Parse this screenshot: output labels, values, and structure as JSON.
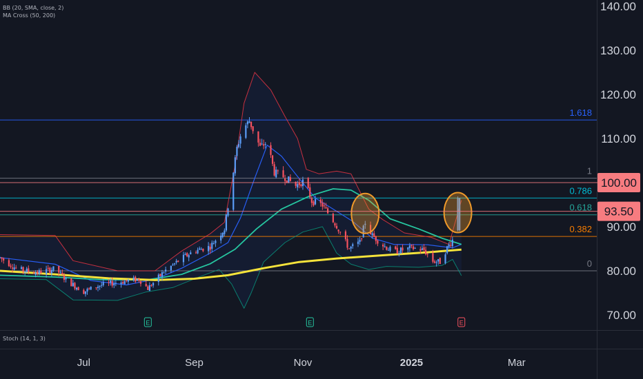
{
  "legend": {
    "bb": "BB (20, SMA, close, 2)",
    "ma": "MA Cross (50, 200)",
    "stoch": "Stoch (14, 1, 3)"
  },
  "colors": {
    "background": "#131722",
    "grid": "#1e222d",
    "candle_up": "#5b9cf6",
    "candle_down": "#f7525f",
    "bb_basis": "#2962ff",
    "bb_upper": "#f23645",
    "bb_lower": "#089981",
    "ma_fast": "#26c6a0",
    "ma_slow": "#f5e33b",
    "fib_1618": "#2962ff",
    "fib_0786": "#00bcd4",
    "fib_0618": "#26a69a",
    "fib_0382": "#f57c00",
    "fib_0": "#787b86",
    "fib_1": "#787b86",
    "price_badge": "#f77c80",
    "highlight_circle": "#f09a2a"
  },
  "chart_data": {
    "type": "candlestick",
    "title": "",
    "y_axis": {
      "ticks": [
        140,
        130,
        120,
        110,
        90,
        80,
        70
      ],
      "tick_labels": [
        "140.00",
        "130.00",
        "120.00",
        "110.00",
        "90.00",
        "80.00",
        "70.00"
      ],
      "range": [
        66,
        142
      ],
      "position": "right"
    },
    "x_axis": {
      "tick_labels": [
        "Jul",
        "Sep",
        "Nov",
        "2025",
        "Mar"
      ],
      "tick_dates": [
        "2024-07-01",
        "2024-09-01",
        "2024-11-01",
        "2025-01-01",
        "2025-03-01"
      ],
      "range": [
        "2024-05-15",
        "2025-04-15"
      ]
    },
    "price_badges": [
      {
        "value": 100.0,
        "label": "100.00"
      },
      {
        "value": 93.5,
        "label": "93.50"
      }
    ],
    "fib_levels": [
      {
        "level": "1.618",
        "price": 114.2,
        "color_key": "fib_1618"
      },
      {
        "level": "1",
        "price": 101.0,
        "color_key": "fib_1"
      },
      {
        "level": "0.786",
        "price": 96.5,
        "color_key": "fib_0786"
      },
      {
        "level": "0.618",
        "price": 92.7,
        "color_key": "fib_0618"
      },
      {
        "level": "0.382",
        "price": 87.8,
        "color_key": "fib_0382"
      },
      {
        "level": "0",
        "price": 80.0,
        "color_key": "fib_0"
      }
    ],
    "earnings_markers": [
      {
        "date": "2024-08-06",
        "label": "E",
        "kind": "past"
      },
      {
        "date": "2024-11-05",
        "label": "E",
        "kind": "past"
      },
      {
        "date": "2025-01-29",
        "label": "E",
        "kind": "upcoming"
      }
    ],
    "highlight_circles": [
      {
        "date": "2024-12-06",
        "price": 93.0
      },
      {
        "date": "2025-01-27",
        "price": 93.2
      }
    ],
    "candle_anchors": [
      [
        "2024-05-15",
        83.0
      ],
      [
        "2024-05-25",
        80.3
      ],
      [
        "2024-06-05",
        79.6
      ],
      [
        "2024-06-15",
        80.5
      ],
      [
        "2024-06-22",
        77.6
      ],
      [
        "2024-07-01",
        75.3
      ],
      [
        "2024-07-10",
        76.7
      ],
      [
        "2024-07-20",
        77.4
      ],
      [
        "2024-08-01",
        78.1
      ],
      [
        "2024-08-06",
        76.0
      ],
      [
        "2024-08-15",
        79.8
      ],
      [
        "2024-08-25",
        82.8
      ],
      [
        "2024-09-01",
        84.5
      ],
      [
        "2024-09-10",
        85.5
      ],
      [
        "2024-09-18",
        89.5
      ],
      [
        "2024-09-21",
        97.3
      ],
      [
        "2024-09-25",
        107.8
      ],
      [
        "2024-09-28",
        112.0
      ],
      [
        "2024-10-02",
        114.0
      ],
      [
        "2024-10-08",
        108.0
      ],
      [
        "2024-10-12",
        109.2
      ],
      [
        "2024-10-16",
        102.3
      ],
      [
        "2024-10-22",
        101.2
      ],
      [
        "2024-10-28",
        99.3
      ],
      [
        "2024-11-02",
        100.5
      ],
      [
        "2024-11-06",
        95.8
      ],
      [
        "2024-11-12",
        94.9
      ],
      [
        "2024-11-20",
        90.2
      ],
      [
        "2024-11-27",
        85.0
      ],
      [
        "2024-12-03",
        86.5
      ],
      [
        "2024-12-06",
        91.0
      ],
      [
        "2024-12-10",
        88.0
      ],
      [
        "2024-12-16",
        85.8
      ],
      [
        "2024-12-22",
        84.3
      ],
      [
        "2025-01-01",
        85.2
      ],
      [
        "2025-01-08",
        84.7
      ],
      [
        "2025-01-13",
        82.2
      ],
      [
        "2025-01-17",
        82.0
      ],
      [
        "2025-01-21",
        85.2
      ],
      [
        "2025-01-24",
        87.0
      ],
      [
        "2025-01-27",
        89.5
      ],
      [
        "2025-01-28",
        96.5
      ]
    ],
    "series": [
      {
        "key": "bb_upper",
        "points": [
          [
            "2024-05-15",
            88.2
          ],
          [
            "2024-06-15",
            88.0
          ],
          [
            "2024-06-25",
            82.3
          ],
          [
            "2024-07-20",
            80.0
          ],
          [
            "2024-08-10",
            80.0
          ],
          [
            "2024-08-25",
            84.5
          ],
          [
            "2024-09-10",
            88.4
          ],
          [
            "2024-09-18",
            91.0
          ],
          [
            "2024-09-24",
            104.0
          ],
          [
            "2024-09-29",
            118.0
          ],
          [
            "2024-10-05",
            125.0
          ],
          [
            "2024-10-14",
            121.0
          ],
          [
            "2024-10-22",
            115.0
          ],
          [
            "2024-10-29",
            110.0
          ],
          [
            "2024-11-03",
            103.0
          ],
          [
            "2024-11-10",
            102.0
          ],
          [
            "2024-11-20",
            102.6
          ],
          [
            "2024-11-28",
            102.0
          ],
          [
            "2024-12-08",
            94.0
          ],
          [
            "2024-12-16",
            91.6
          ],
          [
            "2024-12-28",
            88.6
          ],
          [
            "2025-01-12",
            87.6
          ],
          [
            "2025-01-22",
            86.0
          ],
          [
            "2025-01-29",
            96.0
          ]
        ]
      },
      {
        "key": "bb_lower",
        "points": [
          [
            "2024-05-15",
            78.2
          ],
          [
            "2024-06-10",
            78.0
          ],
          [
            "2024-06-25",
            73.4
          ],
          [
            "2024-07-20",
            73.3
          ],
          [
            "2024-08-05",
            75.2
          ],
          [
            "2024-08-20",
            76.2
          ],
          [
            "2024-09-05",
            78.8
          ],
          [
            "2024-09-15",
            80.3
          ],
          [
            "2024-09-22",
            77.0
          ],
          [
            "2024-09-29",
            71.5
          ],
          [
            "2024-10-03",
            75.0
          ],
          [
            "2024-10-10",
            82.0
          ],
          [
            "2024-10-22",
            86.4
          ],
          [
            "2024-11-01",
            88.8
          ],
          [
            "2024-11-12",
            90.0
          ],
          [
            "2024-11-20",
            84.0
          ],
          [
            "2024-11-28",
            81.5
          ],
          [
            "2024-12-08",
            80.3
          ],
          [
            "2024-12-18",
            81.0
          ],
          [
            "2025-01-05",
            80.8
          ],
          [
            "2025-01-18",
            81.2
          ],
          [
            "2025-01-24",
            82.6
          ],
          [
            "2025-01-29",
            78.9
          ]
        ]
      },
      {
        "key": "bb_basis",
        "points": [
          [
            "2024-05-15",
            83.0
          ],
          [
            "2024-06-15",
            81.5
          ],
          [
            "2024-07-05",
            77.8
          ],
          [
            "2024-07-25",
            76.8
          ],
          [
            "2024-08-10",
            78.1
          ],
          [
            "2024-08-25",
            80.6
          ],
          [
            "2024-09-10",
            84.0
          ],
          [
            "2024-09-20",
            86.4
          ],
          [
            "2024-09-27",
            92.0
          ],
          [
            "2024-10-05",
            101.0
          ],
          [
            "2024-10-12",
            108.5
          ],
          [
            "2024-10-20",
            106.0
          ],
          [
            "2024-10-29",
            101.4
          ],
          [
            "2024-11-08",
            96.5
          ],
          [
            "2024-11-20",
            93.5
          ],
          [
            "2024-11-29",
            91.2
          ],
          [
            "2024-12-10",
            87.4
          ],
          [
            "2024-12-22",
            86.0
          ],
          [
            "2025-01-10",
            85.9
          ],
          [
            "2025-01-24",
            85.2
          ],
          [
            "2025-01-29",
            86.0
          ]
        ]
      },
      {
        "key": "ma_fast",
        "points": [
          [
            "2024-05-15",
            79.0
          ],
          [
            "2024-06-15",
            78.6
          ],
          [
            "2024-07-10",
            78.0
          ],
          [
            "2024-08-05",
            77.9
          ],
          [
            "2024-08-25",
            79.2
          ],
          [
            "2024-09-10",
            81.6
          ],
          [
            "2024-09-24",
            84.9
          ],
          [
            "2024-10-06",
            89.5
          ],
          [
            "2024-10-20",
            94.0
          ],
          [
            "2024-11-05",
            97.0
          ],
          [
            "2024-11-18",
            98.6
          ],
          [
            "2024-11-28",
            98.3
          ],
          [
            "2024-12-08",
            96.0
          ],
          [
            "2024-12-20",
            91.8
          ],
          [
            "2025-01-05",
            89.5
          ],
          [
            "2025-01-18",
            87.4
          ],
          [
            "2025-01-29",
            86.0
          ]
        ]
      },
      {
        "key": "ma_slow",
        "points": [
          [
            "2024-05-15",
            80.0
          ],
          [
            "2024-06-15",
            79.2
          ],
          [
            "2024-07-15",
            78.3
          ],
          [
            "2024-08-10",
            77.9
          ],
          [
            "2024-09-01",
            78.2
          ],
          [
            "2024-09-20",
            79.0
          ],
          [
            "2024-10-10",
            80.6
          ],
          [
            "2024-10-30",
            82.0
          ],
          [
            "2024-11-20",
            82.8
          ],
          [
            "2024-12-15",
            83.5
          ],
          [
            "2025-01-10",
            84.2
          ],
          [
            "2025-01-29",
            84.8
          ]
        ]
      }
    ]
  }
}
